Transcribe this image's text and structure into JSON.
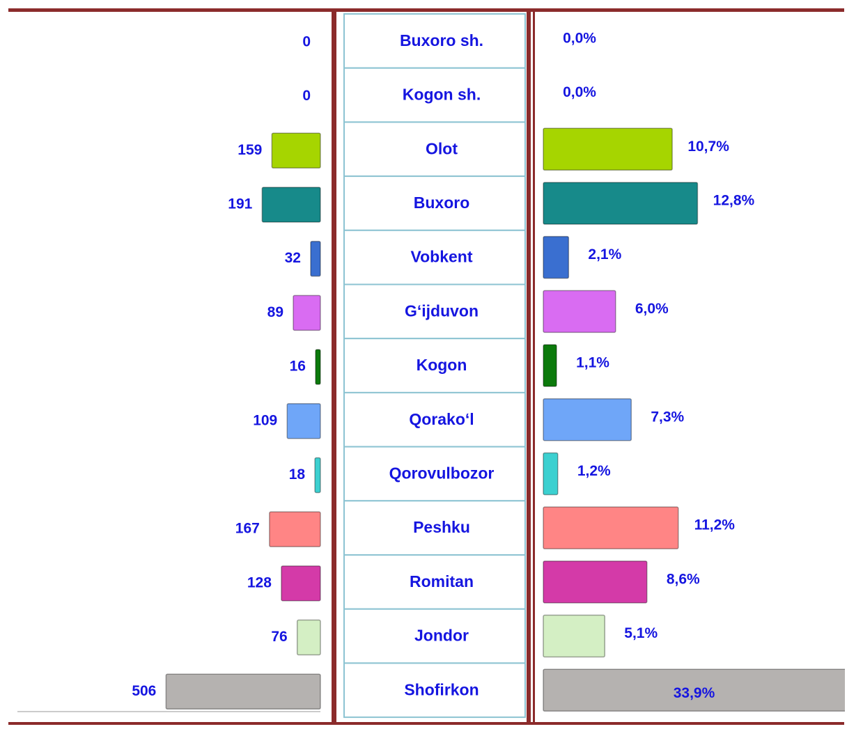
{
  "chart_data": [
    {
      "type": "bar",
      "categories": [
        "Buxoro sh.",
        "Kogon sh.",
        "Olot",
        "Buxoro",
        "Vobkent",
        "G‘ijduvon",
        "Kogon",
        "Qorako‘l",
        "Qorovulbozor",
        "Peshku",
        "Romitan",
        "Jondor",
        "Shofirkon"
      ],
      "values": [
        0,
        0,
        159,
        191,
        32,
        89,
        16,
        109,
        18,
        167,
        128,
        76,
        506
      ],
      "colors": [
        null,
        null,
        "#a6d500",
        "#178a8a",
        "#3a6fd0",
        "#d96cf2",
        "#0c7a0c",
        "#6fa6f8",
        "#3cd0d0",
        "#ff8585",
        "#d43aa8",
        "#d4efc4",
        "#b5b2b0"
      ]
    },
    {
      "type": "bar",
      "values": [
        0.0,
        0.0,
        10.7,
        12.8,
        2.1,
        6.0,
        1.1,
        7.3,
        1.2,
        11.2,
        8.6,
        5.1,
        33.9
      ],
      "value_labels": [
        "0,0%",
        "0,0%",
        "10,7%",
        "12,8%",
        "2,1%",
        "6,0%",
        "1,1%",
        "7,3%",
        "1,2%",
        "11,2%",
        "8,6%",
        "5,1%",
        "33,9%"
      ],
      "colors": [
        null,
        null,
        "#a6d500",
        "#178a8a",
        "#3a6fd0",
        "#d96cf2",
        "#0c7a0c",
        "#6fa6f8",
        "#3cd0d0",
        "#ff8585",
        "#d43aa8",
        "#d4efc4",
        "#b5b2b0"
      ]
    }
  ]
}
